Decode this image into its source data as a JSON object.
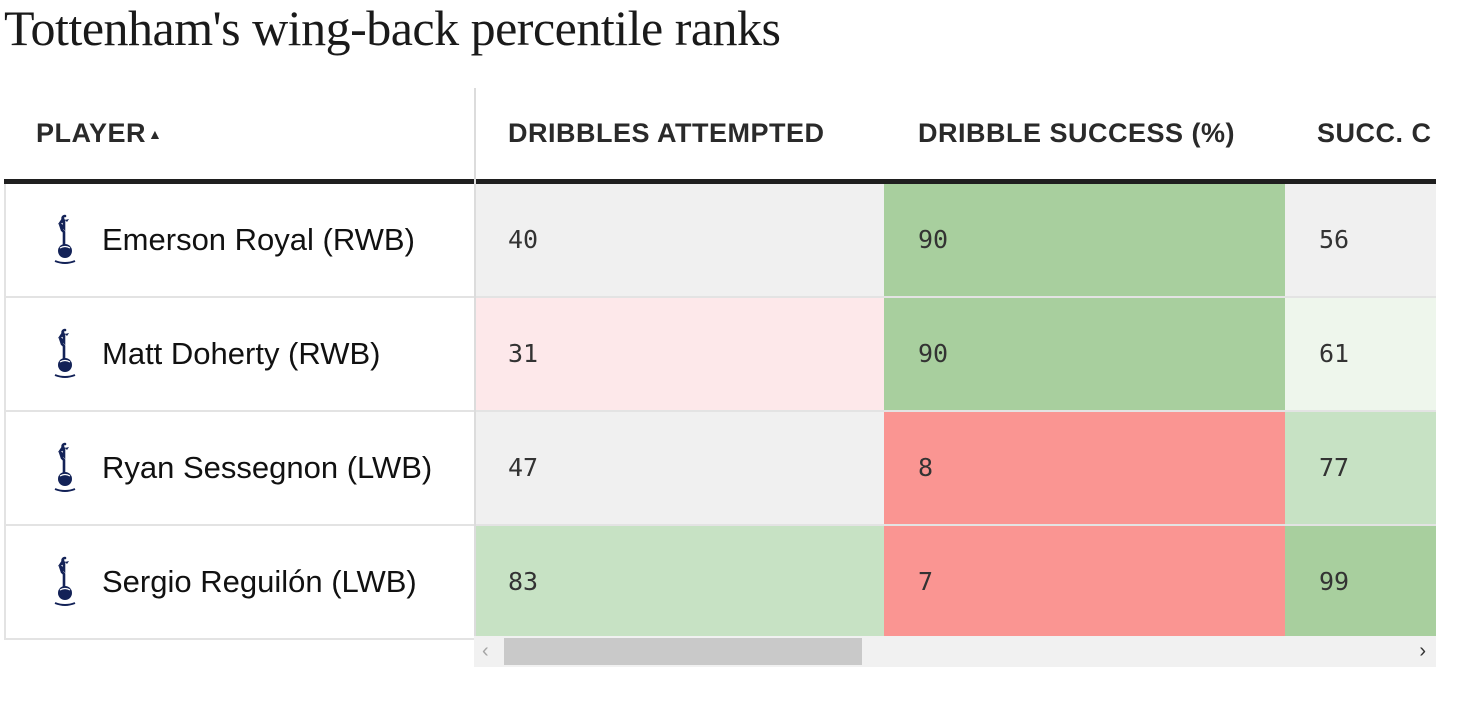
{
  "title": "Tottenham's wing-back percentile ranks",
  "columns": {
    "player": "PLAYER",
    "player_sort_icon": "▲",
    "dribbles_attempted": "DRIBBLES ATTEMPTED",
    "dribble_success": "DRIBBLE SUCCESS (%)",
    "succ": "SUCC. C"
  },
  "colors": {
    "neutral": "#f0f0f0",
    "light_red": "#fde8ea",
    "red": "#fa9592",
    "light_green": "#eef6ec",
    "mid_green": "#c7e2c4",
    "green": "#a8cf9e"
  },
  "players": [
    {
      "name": "Emerson Royal (RWB)",
      "crest_icon": "tottenham-crest-icon"
    },
    {
      "name": "Matt Doherty (RWB)",
      "crest_icon": "tottenham-crest-icon"
    },
    {
      "name": "Ryan Sessegnon (LWB)",
      "crest_icon": "tottenham-crest-icon"
    },
    {
      "name": "Sergio Reguilón (LWB)",
      "crest_icon": "tottenham-crest-icon"
    }
  ],
  "chart_data": {
    "type": "table",
    "title": "Tottenham's wing-back percentile ranks",
    "columns": [
      "PLAYER",
      "DRIBBLES ATTEMPTED",
      "DRIBBLE SUCCESS (%)",
      "SUCC. C"
    ],
    "rows": [
      {
        "player": "Emerson Royal (RWB)",
        "values": [
          "40",
          "90",
          "56"
        ],
        "cell_colors": [
          "#f0f0f0",
          "#a8cf9e",
          "#f0f0f0"
        ]
      },
      {
        "player": "Matt Doherty (RWB)",
        "values": [
          "31",
          "90",
          "61"
        ],
        "cell_colors": [
          "#fde8ea",
          "#a8cf9e",
          "#eef6ec"
        ]
      },
      {
        "player": "Ryan Sessegnon (LWB)",
        "values": [
          "47",
          "8",
          "77"
        ],
        "cell_colors": [
          "#f0f0f0",
          "#fa9592",
          "#c7e2c4"
        ]
      },
      {
        "player": "Sergio Reguilón (LWB)",
        "values": [
          "83",
          "7",
          "99"
        ],
        "cell_colors": [
          "#c7e2c4",
          "#fa9592",
          "#a8cf9e"
        ]
      }
    ]
  },
  "scrollbar": {
    "left_arrow": "‹",
    "right_arrow": "›"
  }
}
